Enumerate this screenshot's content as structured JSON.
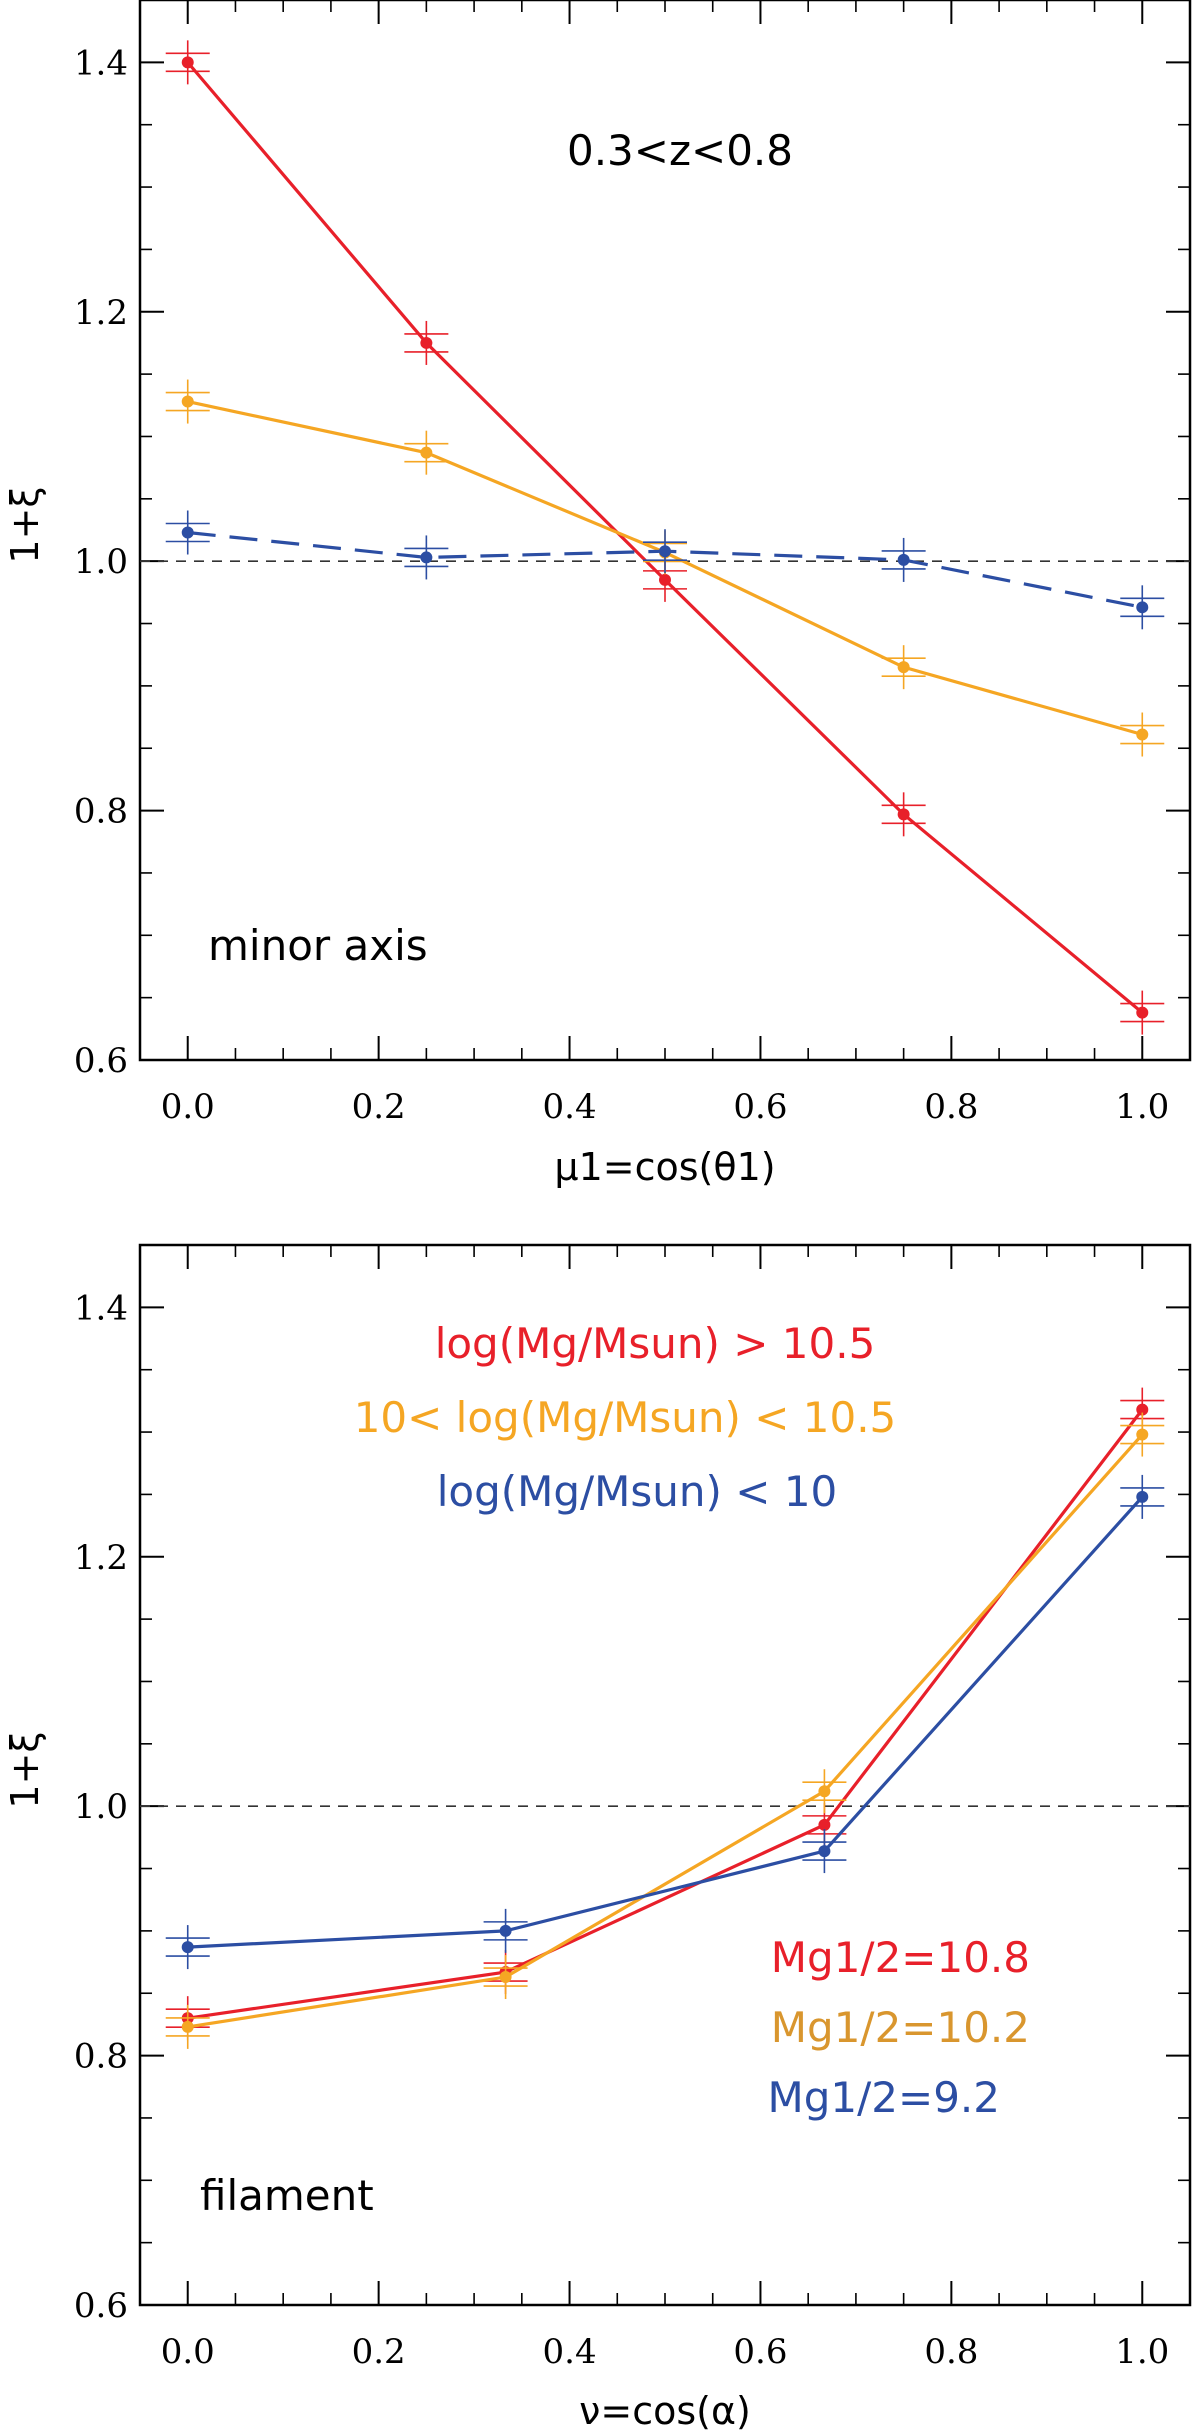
{
  "chart_data": [
    {
      "type": "line",
      "xlabel": "μ1=cos(θ1)",
      "ylabel": "1+ξ",
      "xlim": [
        -0.05,
        1.05
      ],
      "ylim": [
        0.6,
        1.45
      ],
      "xticks": [
        "0.0",
        "0.2",
        "0.4",
        "0.6",
        "0.8",
        "1.0"
      ],
      "yticks": [
        "0.6",
        "0.8",
        "1.0",
        "1.2",
        "1.4"
      ],
      "reference_line": 1.0,
      "annotations": [
        {
          "text": "0.3<z<0.8",
          "color": "#000000",
          "anchor": "top-center"
        },
        {
          "text": "minor axis",
          "color": "#000000",
          "anchor": "bottom-left"
        }
      ],
      "x": [
        0.0,
        0.25,
        0.5,
        0.75,
        1.0
      ],
      "series": [
        {
          "color": "#e8202a",
          "dashed": false,
          "values": [
            1.4,
            1.175,
            0.985,
            0.797,
            0.638
          ]
        },
        {
          "color": "#f5a623",
          "dashed": false,
          "values": [
            1.128,
            1.087,
            1.007,
            0.915,
            0.861
          ]
        },
        {
          "color": "#2c4ea3",
          "dashed": true,
          "values": [
            1.023,
            1.003,
            1.008,
            1.001,
            0.963
          ]
        }
      ]
    },
    {
      "type": "line",
      "xlabel": "ν=cos(α)",
      "ylabel": "1+ξ",
      "xlim": [
        -0.05,
        1.05
      ],
      "ylim": [
        0.6,
        1.45
      ],
      "xticks": [
        "0.0",
        "0.2",
        "0.4",
        "0.6",
        "0.8",
        "1.0"
      ],
      "yticks": [
        "0.6",
        "0.8",
        "1.0",
        "1.2",
        "1.4"
      ],
      "reference_line": 1.0,
      "annotations": [
        {
          "text": "log(Mg/Msun) > 10.5",
          "color": "#e8202a",
          "anchor": "top"
        },
        {
          "text": "10< log(Mg/Msun) < 10.5",
          "color": "#f5a623",
          "anchor": "top"
        },
        {
          "text": "log(Mg/Msun) < 10",
          "color": "#2c4ea3",
          "anchor": "top"
        },
        {
          "text": "Mg1/2=10.8",
          "color": "#e8202a",
          "anchor": "right"
        },
        {
          "text": "Mg1/2=10.2",
          "color": "#d9962e",
          "anchor": "right"
        },
        {
          "text": "Mg1/2=9.2",
          "color": "#2c4ea3",
          "anchor": "right"
        },
        {
          "text": "filament",
          "color": "#000000",
          "anchor": "bottom-left"
        }
      ],
      "x": [
        0.0,
        0.333,
        0.667,
        1.0
      ],
      "series": [
        {
          "color": "#e8202a",
          "dashed": false,
          "values": [
            0.83,
            0.867,
            0.985,
            1.318
          ]
        },
        {
          "color": "#f5a623",
          "dashed": false,
          "values": [
            0.823,
            0.863,
            1.012,
            1.298
          ]
        },
        {
          "color": "#2c4ea3",
          "dashed": false,
          "values": [
            0.887,
            0.9,
            0.964,
            1.248
          ]
        }
      ]
    }
  ]
}
